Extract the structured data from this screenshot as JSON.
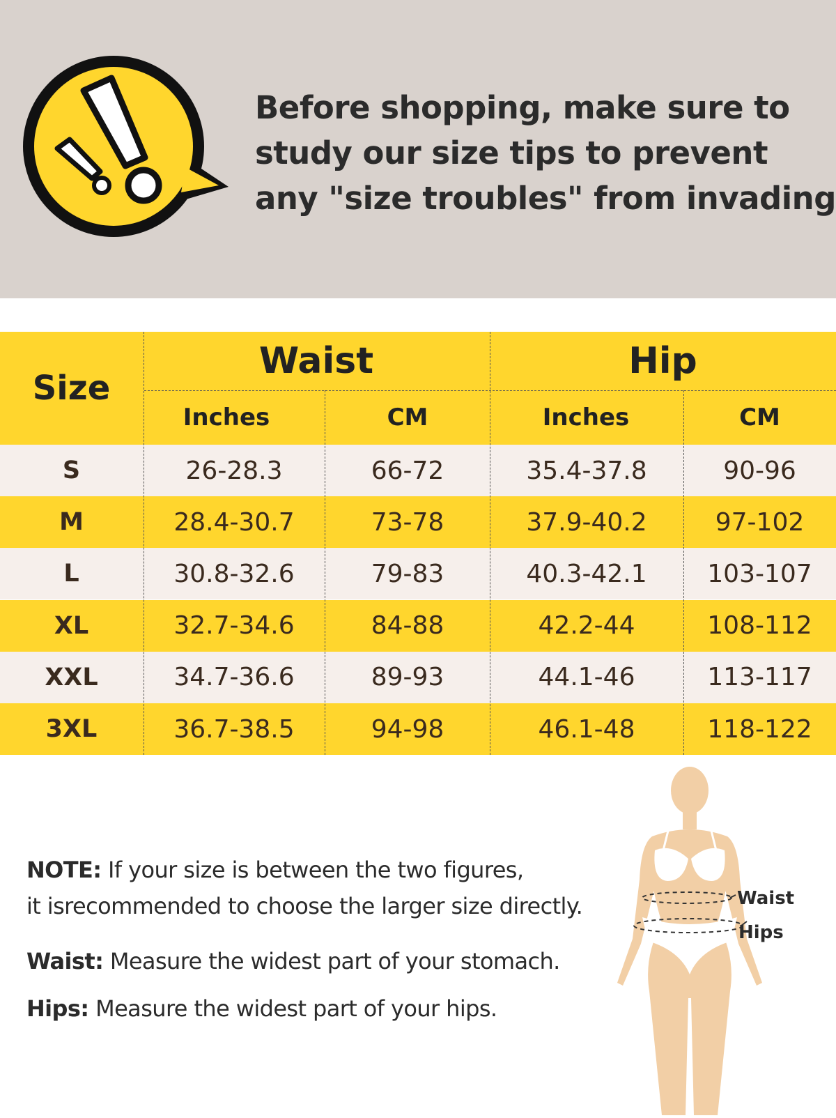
{
  "banner": {
    "background_color": "#d9d2cd",
    "lines": [
      "Before shopping, make sure to",
      "study our size tips to prevent",
      "any \"size troubles\" from invading!"
    ],
    "badge_color": "#ffd62d"
  },
  "table": {
    "colors": {
      "yellow": "#ffd62d",
      "cream": "#f6efeb",
      "text": "#3a2a1e"
    },
    "size_header": "Size",
    "groups": [
      "Waist",
      "Hip"
    ],
    "subheaders": [
      "Inches",
      "CM",
      "Inches",
      "CM"
    ],
    "rows": [
      {
        "size": "S",
        "waist_in": "26-28.3",
        "waist_cm": "66-72",
        "hip_in": "35.4-37.8",
        "hip_cm": "90-96"
      },
      {
        "size": "M",
        "waist_in": "28.4-30.7",
        "waist_cm": "73-78",
        "hip_in": "37.9-40.2",
        "hip_cm": "97-102"
      },
      {
        "size": "L",
        "waist_in": "30.8-32.6",
        "waist_cm": "79-83",
        "hip_in": "40.3-42.1",
        "hip_cm": "103-107"
      },
      {
        "size": "XL",
        "waist_in": "32.7-34.6",
        "waist_cm": "84-88",
        "hip_in": "42.2-44",
        "hip_cm": "108-112"
      },
      {
        "size": "XXL",
        "waist_in": "34.7-36.6",
        "waist_cm": "89-93",
        "hip_in": "44.1-46",
        "hip_cm": "113-117"
      },
      {
        "size": "3XL",
        "waist_in": "36.7-38.5",
        "waist_cm": "94-98",
        "hip_in": "46.1-48",
        "hip_cm": "118-122"
      }
    ]
  },
  "notes": {
    "note_label": "NOTE:",
    "note_line1": " If your size is between the two figures,",
    "note_line2": "it isrecommended to choose the larger size directly.",
    "waist_label": "Waist:",
    "waist_text": "  Measure the widest part of your stomach.",
    "hips_label": "Hips:",
    "hips_text": "  Measure the widest part of your hips."
  },
  "figure": {
    "waist_label": "Waist",
    "hips_label": "Hips",
    "skin_color": "#f2cfa6"
  }
}
